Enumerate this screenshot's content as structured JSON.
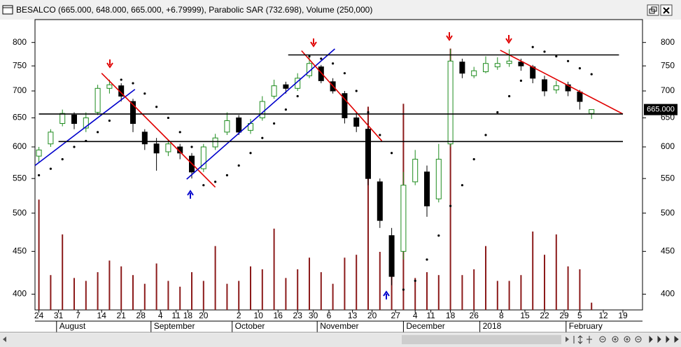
{
  "chart_data": {
    "type": "candlestick",
    "title": "BESALCO (665.000, 648.000, 665.000, +6.79999), Parabolic SAR (732.698), Volume (250,000)",
    "log_scale": true,
    "ylim": [
      383,
      852
    ],
    "yticks": [
      400,
      450,
      500,
      550,
      600,
      650,
      700,
      750,
      800
    ],
    "xlim": [
      -1,
      154
    ],
    "xticks": [
      {
        "value": 0,
        "label": "24"
      },
      {
        "value": 5,
        "label": "31"
      },
      {
        "value": 10,
        "label": "7"
      },
      {
        "value": 16,
        "label": "14"
      },
      {
        "value": 21,
        "label": "21"
      },
      {
        "value": 26,
        "label": "28"
      },
      {
        "value": 31,
        "label": "4"
      },
      {
        "value": 35,
        "label": "11"
      },
      {
        "value": 38,
        "label": "18"
      },
      {
        "value": 42,
        "label": "20"
      },
      {
        "value": 51,
        "label": "2"
      },
      {
        "value": 56,
        "label": "10"
      },
      {
        "value": 61,
        "label": "16"
      },
      {
        "value": 66,
        "label": "23"
      },
      {
        "value": 70,
        "label": "30"
      },
      {
        "value": 74,
        "label": "6"
      },
      {
        "value": 80,
        "label": "13"
      },
      {
        "value": 85,
        "label": "20"
      },
      {
        "value": 91,
        "label": "27"
      },
      {
        "value": 96,
        "label": "4"
      },
      {
        "value": 100,
        "label": "11"
      },
      {
        "value": 105,
        "label": "18"
      },
      {
        "value": 111,
        "label": "26"
      },
      {
        "value": 118,
        "label": "8"
      },
      {
        "value": 124,
        "label": "15"
      },
      {
        "value": 129,
        "label": "22"
      },
      {
        "value": 134,
        "label": "29"
      },
      {
        "value": 138,
        "label": "5"
      },
      {
        "value": 144,
        "label": "12"
      },
      {
        "value": 149,
        "label": "19"
      }
    ],
    "month_ticks": [
      {
        "value": 4.5,
        "label": "August"
      },
      {
        "value": 28.6,
        "label": "September"
      },
      {
        "value": 49.3,
        "label": "October"
      },
      {
        "value": 71,
        "label": "November"
      },
      {
        "value": 93,
        "label": "December"
      },
      {
        "value": 112.5,
        "label": "2018"
      },
      {
        "value": 134.5,
        "label": "February"
      }
    ],
    "x": [
      0,
      3,
      6,
      9,
      12,
      15,
      18,
      21,
      24,
      27,
      30,
      33,
      36,
      39,
      42,
      45,
      48,
      51,
      54,
      57,
      60,
      63,
      66,
      69,
      72,
      75,
      78,
      81,
      84,
      87,
      90,
      93,
      96,
      99,
      102,
      105,
      108,
      111,
      114,
      117,
      120,
      123,
      126,
      129,
      132,
      135,
      138,
      141
    ],
    "open": [
      585,
      605,
      640,
      655,
      632,
      660,
      705,
      710,
      680,
      625,
      605,
      592,
      600,
      585,
      565,
      600,
      625,
      650,
      628,
      650,
      690,
      712,
      705,
      730,
      748,
      718,
      695,
      650,
      630,
      545,
      470,
      450,
      545,
      560,
      520,
      605,
      758,
      730,
      738,
      748,
      755,
      758,
      748,
      722,
      702,
      712,
      698,
      658
    ],
    "high": [
      600,
      630,
      665,
      660,
      660,
      712,
      722,
      715,
      685,
      630,
      615,
      612,
      605,
      590,
      605,
      622,
      660,
      655,
      648,
      690,
      722,
      718,
      735,
      768,
      752,
      725,
      700,
      660,
      640,
      550,
      480,
      560,
      595,
      570,
      605,
      785,
      765,
      748,
      770,
      768,
      785,
      765,
      752,
      730,
      720,
      718,
      702,
      665
    ],
    "low": [
      575,
      600,
      635,
      630,
      625,
      655,
      695,
      680,
      625,
      595,
      562,
      585,
      580,
      550,
      560,
      595,
      620,
      620,
      622,
      645,
      685,
      695,
      700,
      725,
      715,
      695,
      640,
      625,
      540,
      480,
      410,
      440,
      540,
      495,
      515,
      600,
      725,
      725,
      735,
      742,
      748,
      740,
      715,
      690,
      695,
      690,
      665,
      648
    ],
    "close": [
      595,
      625,
      658,
      640,
      650,
      705,
      712,
      690,
      640,
      605,
      590,
      605,
      590,
      560,
      600,
      615,
      645,
      625,
      640,
      680,
      710,
      705,
      725,
      755,
      720,
      700,
      650,
      635,
      550,
      490,
      420,
      540,
      580,
      510,
      580,
      760,
      735,
      740,
      755,
      755,
      760,
      750,
      725,
      700,
      710,
      700,
      680,
      665
    ],
    "up_color": "#1e8c1e",
    "down_color": "#000000",
    "sar": [
      555,
      565,
      580,
      600,
      610,
      625,
      645,
      722,
      715,
      695,
      670,
      650,
      625,
      600,
      540,
      545,
      555,
      570,
      590,
      615,
      640,
      665,
      690,
      770,
      765,
      755,
      735,
      700,
      660,
      620,
      590,
      405,
      415,
      440,
      470,
      510,
      540,
      580,
      620,
      660,
      690,
      720,
      790,
      780,
      770,
      760,
      745,
      733
    ],
    "sar_color": "#000000",
    "volume": [
      3800000,
      1200000,
      2600000,
      1100000,
      1000000,
      1300000,
      1700000,
      1500000,
      1200000,
      900000,
      1600000,
      1000000,
      800000,
      1300000,
      1000000,
      2200000,
      900000,
      1000000,
      1500000,
      1400000,
      2800000,
      1100000,
      1400000,
      1800000,
      1300000,
      900000,
      1800000,
      1900000,
      7000000,
      2000000,
      2300000,
      7100000,
      1100000,
      1300000,
      1200000,
      9000000,
      1200000,
      1400000,
      2200000,
      1000000,
      1000000,
      1200000,
      2700000,
      1900000,
      2600000,
      1500000,
      1400000,
      250000
    ],
    "y2lim": [
      0,
      10000000
    ],
    "volume_color": "#8b1a1a",
    "trend_lines": [
      {
        "color": "#0000cc",
        "x": [
          -1,
          24.5
        ],
        "values": [
          570,
          703
        ]
      },
      {
        "color": "#e00000",
        "x": [
          16,
          45
        ],
        "values": [
          735,
          537
        ]
      },
      {
        "color": "#0000cc",
        "x": [
          37.7,
          75.5
        ],
        "values": [
          549,
          786
        ]
      },
      {
        "color": "#e00000",
        "x": [
          67,
          87.5
        ],
        "values": [
          782,
          610
        ]
      },
      {
        "color": "#e00000",
        "x": [
          117.7,
          149
        ],
        "values": [
          783,
          657
        ]
      },
      {
        "color": "#000000",
        "x": [
          63.6,
          148
        ],
        "values": [
          773,
          773
        ]
      },
      {
        "color": "#000000",
        "x": [
          0,
          149
        ],
        "values": [
          657,
          657
        ]
      },
      {
        "color": "#000000",
        "x": [
          5,
          149
        ],
        "values": [
          609,
          609
        ]
      }
    ],
    "last_price": {
      "value": 665,
      "label": "665.000"
    }
  }
}
